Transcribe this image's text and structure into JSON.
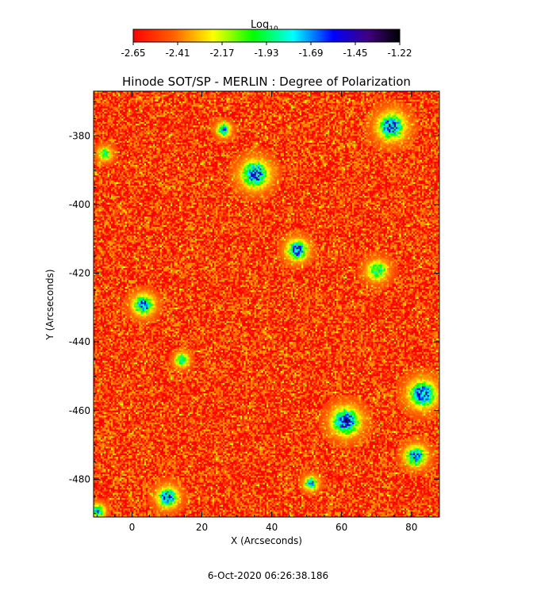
{
  "colorbar": {
    "label": "Log",
    "label_sub": "10",
    "ticks": [
      "-2.65",
      "-2.41",
      "-2.17",
      "-1.93",
      "-1.69",
      "-1.45",
      "-1.22"
    ],
    "range": [
      -2.65,
      -1.22
    ]
  },
  "chart_data": {
    "type": "heatmap",
    "title": "Hinode SOT/SP - MERLIN : Degree of Polarization",
    "xlabel": "X (Arcseconds)",
    "ylabel": "Y (Arcseconds)",
    "xlim": [
      -11,
      88
    ],
    "ylim": [
      -491,
      -367
    ],
    "x_ticks": [
      0,
      20,
      40,
      60,
      80
    ],
    "y_ticks": [
      -380,
      -400,
      -420,
      -440,
      -460,
      -480
    ],
    "x_tick_labels": [
      "0",
      "20",
      "40",
      "60",
      "80"
    ],
    "y_tick_labels": [
      "-380",
      "-400",
      "-420",
      "-440",
      "-460",
      "-480"
    ],
    "value_range": [
      -2.65,
      -1.22
    ],
    "colormap": [
      "#ff0000",
      "#ff8000",
      "#ffff00",
      "#00ff00",
      "#00ffff",
      "#0000ff",
      "#400080",
      "#000000"
    ],
    "background_level": -2.55,
    "enhanced_regions": [
      {
        "x": 74,
        "y": -377,
        "peak": -1.5,
        "extent": 4
      },
      {
        "x": 35,
        "y": -391,
        "peak": -1.45,
        "extent": 4
      },
      {
        "x": 26,
        "y": -378,
        "peak": -1.6,
        "extent": 2
      },
      {
        "x": 3,
        "y": -429,
        "peak": -1.5,
        "extent": 3
      },
      {
        "x": 47,
        "y": -413,
        "peak": -1.45,
        "extent": 3
      },
      {
        "x": 61,
        "y": -463,
        "peak": -1.4,
        "extent": 4
      },
      {
        "x": 83,
        "y": -455,
        "peak": -1.45,
        "extent": 4
      },
      {
        "x": 81,
        "y": -473,
        "peak": -1.5,
        "extent": 3
      },
      {
        "x": 10,
        "y": -485,
        "peak": -1.5,
        "extent": 3
      },
      {
        "x": 51,
        "y": -481,
        "peak": -1.6,
        "extent": 2
      },
      {
        "x": 70,
        "y": -419,
        "peak": -1.8,
        "extent": 3
      },
      {
        "x": 14,
        "y": -445,
        "peak": -1.7,
        "extent": 2
      },
      {
        "x": -10,
        "y": -489,
        "peak": -1.6,
        "extent": 2
      },
      {
        "x": -8,
        "y": -385,
        "peak": -1.8,
        "extent": 2
      }
    ]
  },
  "timestamp": "6-Oct-2020 06:26:38.186"
}
